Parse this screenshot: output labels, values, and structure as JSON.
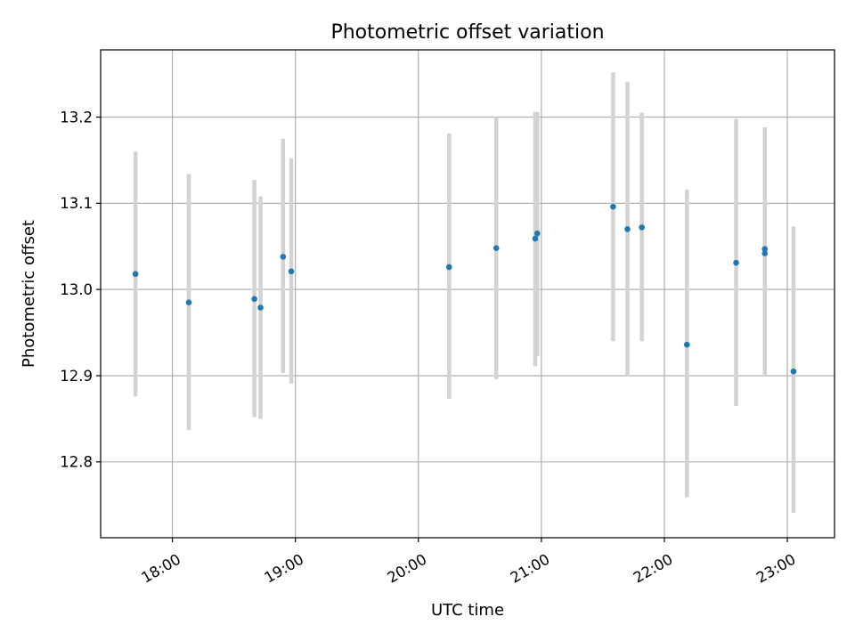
{
  "chart_data": {
    "type": "scatter",
    "title": "Photometric offset variation",
    "xlabel": "UTC time",
    "ylabel": "Photometric offset",
    "x_axis_kind": "time",
    "xlim": [
      "17:25",
      "23:23"
    ],
    "ylim": [
      12.712,
      13.278
    ],
    "grid": true,
    "x_ticks": [
      "18:00",
      "19:00",
      "20:00",
      "21:00",
      "22:00",
      "23:00"
    ],
    "y_ticks": [
      "12.8",
      "12.9",
      "13.0",
      "13.1",
      "13.2"
    ],
    "marker_color": "#1f77b4",
    "errorbar_color": "#d3d3d3",
    "points": [
      {
        "x": "17:42",
        "y": 13.018,
        "ylow": 12.876,
        "yhigh": 13.16
      },
      {
        "x": "18:08",
        "y": 12.985,
        "ylow": 12.837,
        "yhigh": 13.134
      },
      {
        "x": "18:40",
        "y": 12.989,
        "ylow": 12.852,
        "yhigh": 13.127
      },
      {
        "x": "18:43",
        "y": 12.979,
        "ylow": 12.85,
        "yhigh": 13.108
      },
      {
        "x": "18:54",
        "y": 13.038,
        "ylow": 12.903,
        "yhigh": 13.175
      },
      {
        "x": "18:58",
        "y": 13.021,
        "ylow": 12.891,
        "yhigh": 13.152
      },
      {
        "x": "20:15",
        "y": 13.026,
        "ylow": 12.873,
        "yhigh": 13.181
      },
      {
        "x": "20:38",
        "y": 13.048,
        "ylow": 12.896,
        "yhigh": 13.2
      },
      {
        "x": "20:57",
        "y": 13.059,
        "ylow": 12.911,
        "yhigh": 13.206
      },
      {
        "x": "20:58",
        "y": 13.065,
        "ylow": 12.923,
        "yhigh": 13.206
      },
      {
        "x": "21:35",
        "y": 13.096,
        "ylow": 12.94,
        "yhigh": 13.252
      },
      {
        "x": "21:42",
        "y": 13.07,
        "ylow": 12.9,
        "yhigh": 13.241
      },
      {
        "x": "21:49",
        "y": 13.072,
        "ylow": 12.94,
        "yhigh": 13.205
      },
      {
        "x": "22:11",
        "y": 12.936,
        "ylow": 12.759,
        "yhigh": 13.116
      },
      {
        "x": "22:35",
        "y": 13.031,
        "ylow": 12.865,
        "yhigh": 13.198
      },
      {
        "x": "22:49",
        "y": 13.047,
        "ylow": 12.899,
        "yhigh": 13.188
      },
      {
        "x": "22:49",
        "y": 13.042,
        "ylow": 12.899,
        "yhigh": 13.188
      },
      {
        "x": "23:03",
        "y": 12.905,
        "ylow": 12.741,
        "yhigh": 13.073
      }
    ]
  }
}
